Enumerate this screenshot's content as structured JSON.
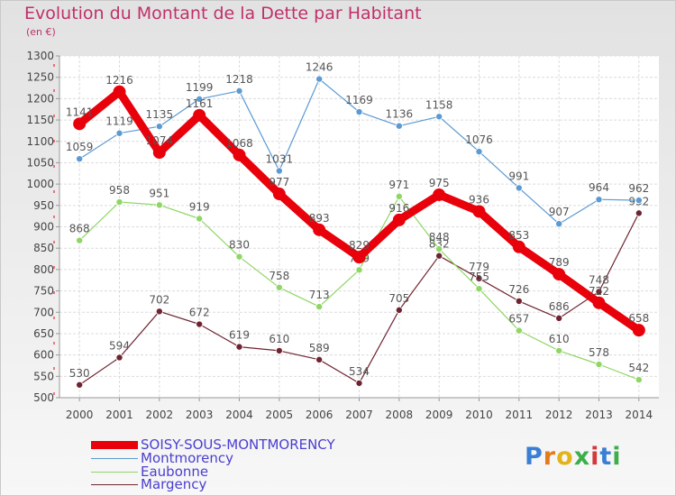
{
  "chart_data": {
    "type": "line",
    "title": "Evolution du Montant de la Dette par Habitant",
    "subtitle": "(en €)",
    "xlabel": "",
    "ylabel": "",
    "x": [
      2000,
      2001,
      2002,
      2003,
      2004,
      2005,
      2006,
      2007,
      2008,
      2009,
      2010,
      2011,
      2012,
      2013,
      2014
    ],
    "ylim": [
      500,
      1300
    ],
    "yticks": [
      500,
      550,
      600,
      650,
      700,
      750,
      800,
      850,
      900,
      950,
      1000,
      1050,
      1100,
      1150,
      1200,
      1250,
      1300
    ],
    "grid": true,
    "legend_position": "bottom-left",
    "series": [
      {
        "name": "SOISY-SOUS-MONTMORENCY",
        "color": "#e8000b",
        "values": [
          1141,
          1216,
          1074,
          1161,
          1068,
          977,
          893,
          829,
          916,
          975,
          936,
          853,
          789,
          722,
          658
        ]
      },
      {
        "name": "Montmorency",
        "color": "#5b9ad3",
        "values": [
          1059,
          1119,
          1135,
          1199,
          1218,
          1031,
          1246,
          1169,
          1136,
          1158,
          1076,
          991,
          907,
          964,
          962
        ]
      },
      {
        "name": "Eaubonne",
        "color": "#8fd664",
        "values": [
          868,
          958,
          951,
          919,
          830,
          758,
          713,
          799,
          971,
          848,
          755,
          657,
          610,
          578,
          542
        ]
      },
      {
        "name": "Margency",
        "color": "#6e2430",
        "values": [
          530,
          594,
          702,
          672,
          619,
          610,
          589,
          534,
          705,
          832,
          779,
          726,
          686,
          748,
          932
        ]
      }
    ]
  },
  "logo": {
    "letters": [
      "P",
      "r",
      "o",
      "x",
      "i",
      "t",
      "i"
    ],
    "colors": [
      "#3a7fd4",
      "#e37b1a",
      "#e3b31a",
      "#3aaf4a",
      "#d4383a",
      "#3a7fd4",
      "#3aaf4a"
    ]
  }
}
